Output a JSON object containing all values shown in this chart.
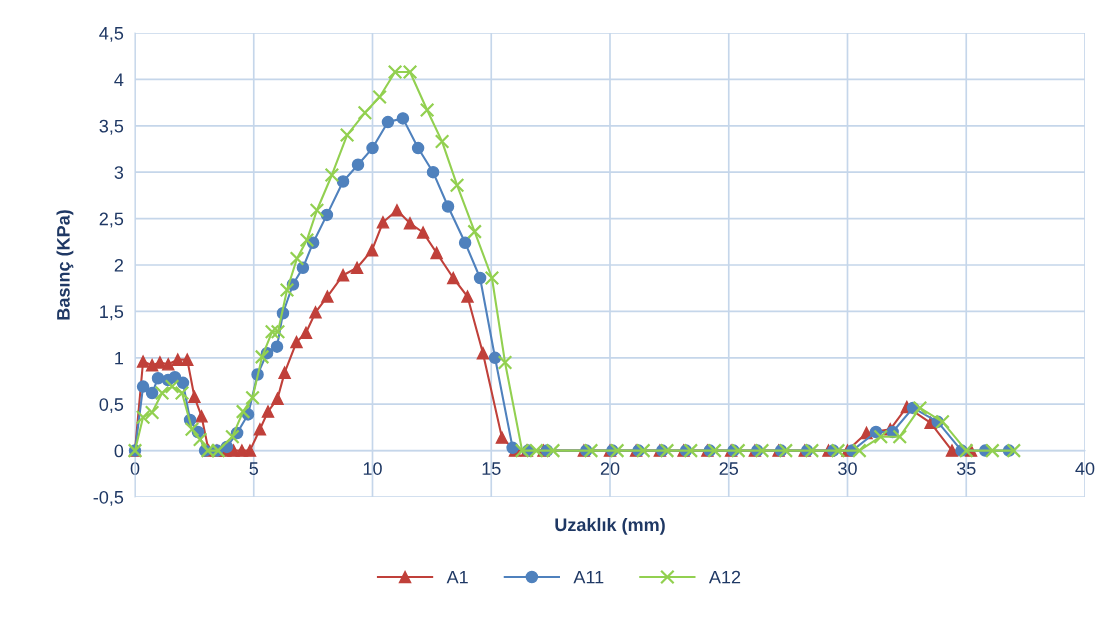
{
  "chart_data": {
    "type": "line",
    "xlabel": "Uzaklık (mm)",
    "ylabel": "Basınç (KPa)",
    "xlim": [
      0,
      40
    ],
    "xticks": [
      0,
      5,
      10,
      15,
      20,
      25,
      30,
      35,
      40
    ],
    "ylim": [
      -0.5,
      4.5
    ],
    "yticks": [
      {
        "value": -0.5,
        "label": "-0,5"
      },
      0,
      {
        "value": 0.5,
        "label": "0,5"
      },
      1,
      {
        "value": 1.5,
        "label": "1,5"
      },
      2,
      {
        "value": 2.5,
        "label": "2,5"
      },
      3,
      {
        "value": 3.5,
        "label": "3,5"
      },
      4,
      {
        "value": 4.5,
        "label": "4,5"
      }
    ],
    "grid": true,
    "legend": "bottom",
    "line_style": "solid",
    "series": [
      {
        "name": "A1",
        "color": "#c0403a",
        "marker": "triangle",
        "x": [
          0,
          0.34,
          0.72,
          1.05,
          1.4,
          1.8,
          2.2,
          2.5,
          2.8,
          3.1,
          3.45,
          3.8,
          4.15,
          4.5,
          4.84,
          5.26,
          5.6,
          6.0,
          6.3,
          6.8,
          7.2,
          7.6,
          8.1,
          8.76,
          9.35,
          9.98,
          10.44,
          11.03,
          11.58,
          12.13,
          12.7,
          13.4,
          14.0,
          14.65,
          15.45,
          16.0,
          16.5,
          17.2,
          18.9,
          20.0,
          21.1,
          22.1,
          23.1,
          24.1,
          25.1,
          26.1,
          27.1,
          28.2,
          29.2,
          30.0,
          30.8,
          31.8,
          32.5,
          33.5,
          34.4,
          35.2
        ],
        "values": [
          0,
          0.96,
          0.92,
          0.95,
          0.93,
          0.98,
          0.98,
          0.58,
          0.37,
          0,
          0,
          0,
          0,
          0,
          0,
          0.23,
          0.42,
          0.56,
          0.84,
          1.17,
          1.27,
          1.49,
          1.66,
          1.89,
          1.97,
          2.16,
          2.46,
          2.59,
          2.45,
          2.35,
          2.13,
          1.86,
          1.66,
          1.05,
          0.14,
          0,
          0,
          0,
          0,
          0,
          0,
          0,
          0,
          0,
          0,
          0,
          0,
          0,
          0,
          0,
          0.19,
          0.23,
          0.47,
          0.3,
          0,
          0
        ]
      },
      {
        "name": "A11",
        "color": "#4f81bd",
        "marker": "circle",
        "x": [
          0,
          0.34,
          0.72,
          0.97,
          1.39,
          1.68,
          2.02,
          2.32,
          2.65,
          2.95,
          3.45,
          3.87,
          4.3,
          4.76,
          5.16,
          5.56,
          5.98,
          6.23,
          6.65,
          7.07,
          7.5,
          8.08,
          8.76,
          9.39,
          10.0,
          10.65,
          11.28,
          11.92,
          12.55,
          13.18,
          13.9,
          14.53,
          15.16,
          15.9,
          16.55,
          17.35,
          19.0,
          20.1,
          21.2,
          22.2,
          23.2,
          24.2,
          25.2,
          26.2,
          27.2,
          28.3,
          29.4,
          30.2,
          31.2,
          31.9,
          32.76,
          33.8,
          34.8,
          35.8,
          36.8
        ],
        "values": [
          0,
          0.69,
          0.62,
          0.78,
          0.76,
          0.79,
          0.73,
          0.33,
          0.2,
          0,
          0,
          0.04,
          0.19,
          0.39,
          0.82,
          1.05,
          1.12,
          1.48,
          1.79,
          1.97,
          2.24,
          2.54,
          2.9,
          3.08,
          3.26,
          3.54,
          3.58,
          3.26,
          3.0,
          2.63,
          2.24,
          1.86,
          1.0,
          0.03,
          0,
          0,
          0,
          0,
          0,
          0,
          0,
          0,
          0,
          0,
          0,
          0,
          0,
          0,
          0.2,
          0.2,
          0.46,
          0.31,
          0,
          0,
          0
        ]
      },
      {
        "name": "A12",
        "color": "#92d050",
        "marker": "cross",
        "x": [
          0,
          0.34,
          0.72,
          1.14,
          1.56,
          1.98,
          2.4,
          2.74,
          3.07,
          3.5,
          4.1,
          4.55,
          4.95,
          5.35,
          5.77,
          6.02,
          6.4,
          6.82,
          7.24,
          7.66,
          8.29,
          8.93,
          9.68,
          10.3,
          10.95,
          11.58,
          12.3,
          12.93,
          13.56,
          14.3,
          15.03,
          15.58,
          16.3,
          16.9,
          17.6,
          19.2,
          20.3,
          21.4,
          22.4,
          23.4,
          24.4,
          25.4,
          26.4,
          27.4,
          28.5,
          29.6,
          30.5,
          31.4,
          32.2,
          33.05,
          34.0,
          35.0,
          36.1,
          37.0
        ],
        "values": [
          0,
          0.36,
          0.41,
          0.62,
          0.69,
          0.62,
          0.23,
          0.12,
          0,
          0,
          0.15,
          0.42,
          0.57,
          1.01,
          1.28,
          1.28,
          1.73,
          2.07,
          2.27,
          2.59,
          2.97,
          3.4,
          3.64,
          3.81,
          4.08,
          4.08,
          3.67,
          3.33,
          2.86,
          2.36,
          1.86,
          0.95,
          0,
          0,
          0,
          0,
          0,
          0,
          0,
          0,
          0,
          0,
          0,
          0,
          0,
          0,
          0,
          0.15,
          0.15,
          0.46,
          0.31,
          0,
          0,
          0
        ]
      }
    ]
  }
}
